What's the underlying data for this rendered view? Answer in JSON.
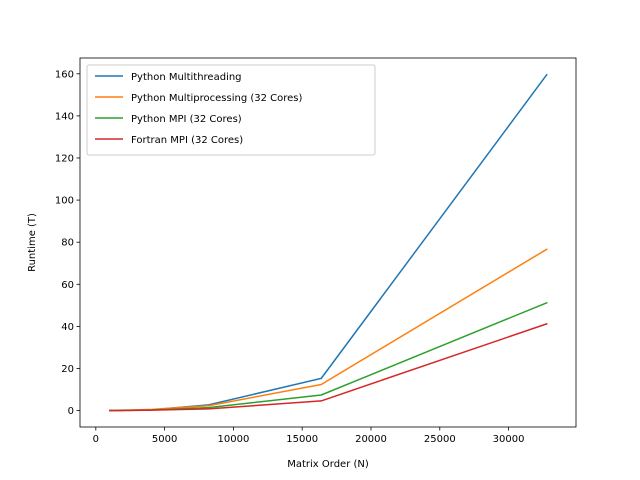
{
  "chart_data": {
    "type": "line",
    "xlabel": "Matrix Order (N)",
    "ylabel": "Runtime (T)",
    "xlim": [
      -1150,
      34900
    ],
    "ylim": [
      -7.8,
      167.5
    ],
    "xticks": [
      0,
      5000,
      10000,
      15000,
      20000,
      25000,
      30000
    ],
    "yticks": [
      0,
      20,
      40,
      60,
      80,
      100,
      120,
      140,
      160
    ],
    "grid": false,
    "legend_position": "top-left",
    "x": [
      1024,
      2048,
      4096,
      8192,
      16384,
      32768
    ],
    "series": [
      {
        "name": "Python Multithreading",
        "color": "#1f77b4",
        "values": [
          0.05,
          0.1,
          0.4,
          2.7,
          15.3,
          159.5
        ]
      },
      {
        "name": "Python Multiprocessing (32 Cores)",
        "color": "#ff7f0e",
        "values": [
          0.1,
          0.2,
          0.6,
          2.3,
          12.4,
          76.6
        ]
      },
      {
        "name": "Python MPI (32 Cores)",
        "color": "#2ca02c",
        "values": [
          0.05,
          0.1,
          0.3,
          1.4,
          7.4,
          51.2
        ]
      },
      {
        "name": "Fortran MPI (32 Cores)",
        "color": "#d62728",
        "values": [
          0.0,
          0.05,
          0.2,
          0.8,
          4.6,
          41.2
        ]
      }
    ]
  }
}
